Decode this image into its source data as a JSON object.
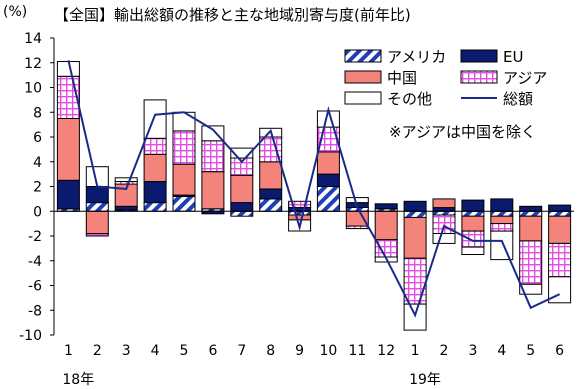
{
  "title": {
    "unit": "(%)",
    "text": "【全国】輸出総額の推移と主な地域別寄与度(前年比)"
  },
  "note": "※アジアは中国を除く",
  "colors": {
    "america": "#1f3fb8",
    "eu": "#0a1a6e",
    "china": "#f4837b",
    "asia": "#e44ee4",
    "other": "#ffffff",
    "total": "#1a2a8a"
  },
  "chart_data": {
    "type": "bar",
    "subtype": "stacked-with-line",
    "categories": [
      "1",
      "2",
      "3",
      "4",
      "5",
      "6",
      "7",
      "8",
      "9",
      "10",
      "11",
      "12",
      "1",
      "2",
      "3",
      "4",
      "5",
      "6"
    ],
    "year_labels": [
      {
        "label": "18年",
        "index": 0
      },
      {
        "label": "19年",
        "index": 12
      }
    ],
    "ylim": [
      -10,
      14
    ],
    "yticks": [
      -10,
      -8,
      -6,
      -4,
      -2,
      0,
      2,
      4,
      6,
      8,
      10,
      12,
      14
    ],
    "grid": false,
    "legend_position": "top-right",
    "series": [
      {
        "key": "america",
        "name": "アメリカ",
        "values": [
          0.2,
          0.7,
          0.1,
          0.7,
          1.2,
          0.2,
          -0.4,
          1.0,
          -0.3,
          2.0,
          0.3,
          0.2,
          -0.5,
          -0.3,
          -0.4,
          -0.4,
          -0.4,
          -0.4
        ]
      },
      {
        "key": "eu",
        "name": "EU",
        "values": [
          2.3,
          1.3,
          0.3,
          1.7,
          0.1,
          -0.2,
          0.7,
          0.8,
          0.3,
          1.0,
          0.4,
          0.4,
          0.8,
          0.3,
          0.9,
          1.0,
          0.4,
          0.5
        ]
      },
      {
        "key": "china",
        "name": "中国",
        "values": [
          5.0,
          -1.8,
          1.8,
          2.2,
          2.5,
          3.0,
          2.2,
          2.2,
          -0.4,
          1.8,
          -1.2,
          -2.3,
          -3.3,
          0.7,
          -1.2,
          -0.6,
          -2.0,
          -2.2
        ]
      },
      {
        "key": "asia",
        "name": "アジア",
        "values": [
          3.4,
          -0.2,
          0.2,
          1.3,
          2.7,
          2.5,
          1.4,
          2.0,
          0.5,
          2.0,
          -0.2,
          -1.4,
          -3.7,
          -1.5,
          -1.3,
          -0.6,
          -3.5,
          -2.7
        ]
      },
      {
        "key": "other",
        "name": "その他",
        "values": [
          1.2,
          1.6,
          0.3,
          3.1,
          1.5,
          1.2,
          0.8,
          0.7,
          -0.9,
          1.3,
          0.4,
          -0.4,
          -2.1,
          -0.8,
          -0.6,
          -2.3,
          -0.8,
          -2.1
        ]
      }
    ],
    "line": {
      "key": "total",
      "name": "総額",
      "values": [
        12.2,
        2.0,
        1.8,
        7.8,
        8.0,
        6.6,
        4.0,
        6.5,
        -1.3,
        8.2,
        0.3,
        -3.8,
        -8.4,
        -1.2,
        -2.4,
        -2.4,
        -7.8,
        -6.7
      ]
    }
  }
}
